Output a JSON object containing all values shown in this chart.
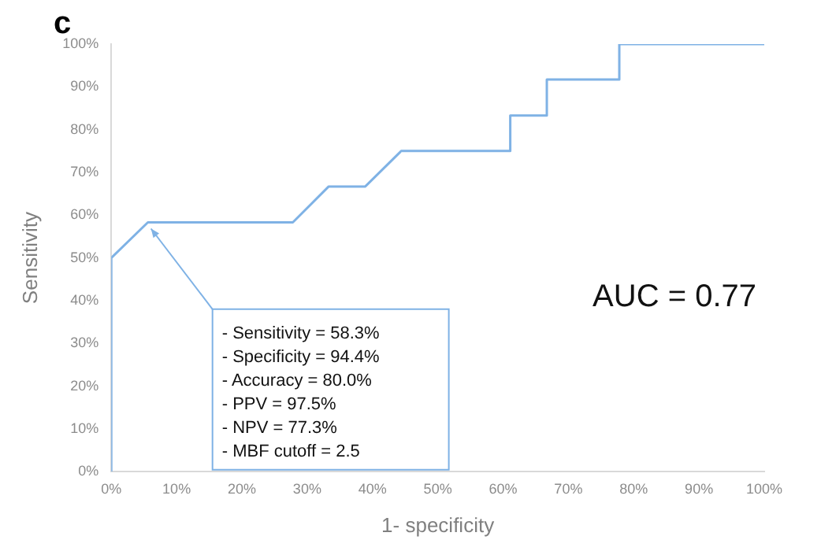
{
  "chart_data": {
    "type": "line",
    "title": "c",
    "xlabel": "1- specificity",
    "ylabel": "Sensitivity",
    "series": [
      {
        "color": "#7fb2e5",
        "x": [
          0,
          0,
          5.6,
          27.8,
          33.3,
          38.9,
          44.4,
          61.1,
          61.1,
          66.7,
          66.7,
          77.8,
          77.8,
          100
        ],
        "values": [
          0,
          50,
          58.3,
          58.3,
          66.7,
          66.7,
          75,
          75,
          83.3,
          83.3,
          91.7,
          91.7,
          100,
          100
        ]
      }
    ],
    "xlim": [
      0,
      100
    ],
    "xticks": [
      {
        "value": 0,
        "label": "0%"
      },
      {
        "value": 10,
        "label": "10%"
      },
      {
        "value": 20,
        "label": "20%"
      },
      {
        "value": 30,
        "label": "30%"
      },
      {
        "value": 40,
        "label": "40%"
      },
      {
        "value": 50,
        "label": "50%"
      },
      {
        "value": 60,
        "label": "60%"
      },
      {
        "value": 70,
        "label": "70%"
      },
      {
        "value": 80,
        "label": "80%"
      },
      {
        "value": 90,
        "label": "90%"
      },
      {
        "value": 100,
        "label": "100%"
      }
    ],
    "ylim": [
      0,
      100
    ],
    "yticks": [
      {
        "value": 0,
        "label": "0%"
      },
      {
        "value": 10,
        "label": "10%"
      },
      {
        "value": 20,
        "label": "20%"
      },
      {
        "value": 30,
        "label": "30%"
      },
      {
        "value": 40,
        "label": "40%"
      },
      {
        "value": 50,
        "label": "50%"
      },
      {
        "value": 60,
        "label": "60%"
      },
      {
        "value": 70,
        "label": "70%"
      },
      {
        "value": 80,
        "label": "80%"
      },
      {
        "value": 90,
        "label": "90%"
      },
      {
        "value": 100,
        "label": "100%"
      }
    ],
    "annotations": [
      {
        "text": "- Sensitivity = 58.3%\n- Specificity = 94.4%\n- Accuracy = 80.0%\n- PPV = 97.5%\n- NPV = 77.3%\n- MBF cutoff = 2.5",
        "x": 5.6,
        "y": 58.3
      },
      "AUC = 0.77"
    ],
    "grid": false,
    "legend": false,
    "marker": "none",
    "line_style": "solid"
  }
}
